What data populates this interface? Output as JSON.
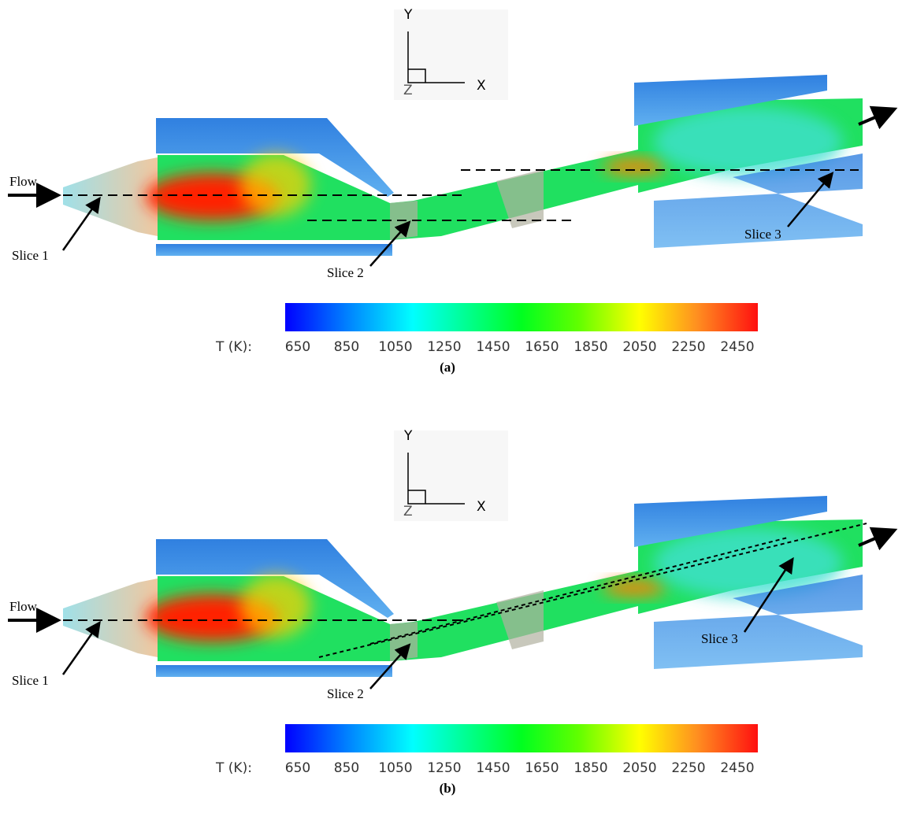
{
  "panels": [
    {
      "axes": {
        "y": "Y",
        "z": "Z",
        "x": "X"
      },
      "flow": "Flow",
      "slices": [
        "Slice 1",
        "Slice 2",
        "Slice 3"
      ],
      "colorbar": {
        "label": "T (K):",
        "ticks": [
          650,
          850,
          1050,
          1250,
          1450,
          1650,
          1850,
          2050,
          2250,
          2450
        ]
      },
      "caption": "(a)"
    },
    {
      "axes": {
        "y": "Y",
        "z": "Z",
        "x": "X"
      },
      "flow": "Flow",
      "slices": [
        "Slice 1",
        "Slice 2",
        "Slice 3"
      ],
      "colorbar": {
        "label": "T (K):",
        "ticks": [
          650,
          850,
          1050,
          1250,
          1450,
          1650,
          1850,
          2050,
          2250,
          2450
        ]
      },
      "caption": "(b)"
    }
  ]
}
